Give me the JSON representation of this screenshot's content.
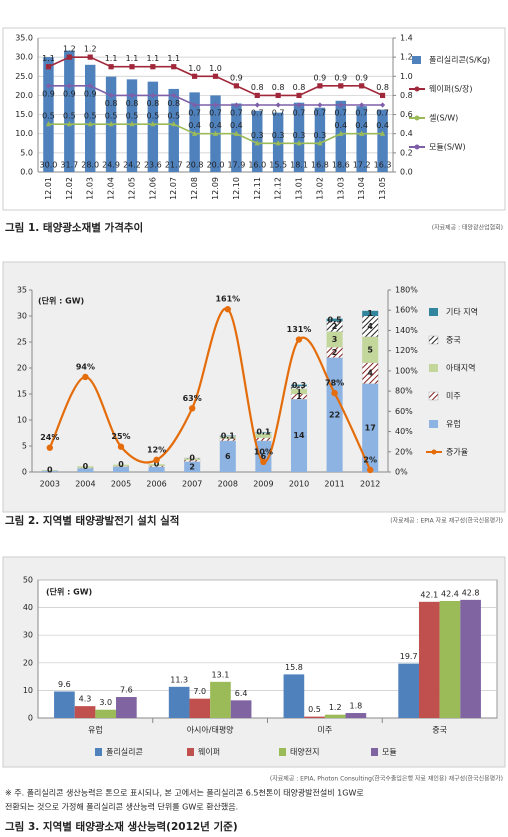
{
  "chart_data": [
    {
      "type": "combo",
      "caption": "그림 1. 태양광소재별 가격추이",
      "source": "(자료제공 : 태양광산업협회)",
      "categories": [
        "12.01",
        "12.02",
        "12.03",
        "12.04",
        "12.05",
        "12.06",
        "12.07",
        "12.08",
        "12.09",
        "12.10",
        "12.11",
        "12.12",
        "13.01",
        "13.02",
        "13.03",
        "13.04",
        "13.05"
      ],
      "series": [
        {
          "name": "폴리실리콘(S/Kg)",
          "type": "bar",
          "color": "#4f81bd",
          "values": [
            30.0,
            31.7,
            28.0,
            24.9,
            24.2,
            23.6,
            21.7,
            20.8,
            20.0,
            17.9,
            16.0,
            15.5,
            18.1,
            16.8,
            18.6,
            17.2,
            16.3
          ],
          "value_labels": [
            "30.0",
            "31.7",
            "28.0",
            "24.9",
            "24.2",
            "23.6",
            "21.7",
            "20.8",
            "20.0",
            "17.9",
            "16.0",
            "15.5",
            "18.1",
            "16.8",
            "18.6",
            "17.2",
            "16.3"
          ]
        },
        {
          "name": "웨이퍼(S/장)",
          "type": "line",
          "axis": "y2",
          "marker": "square",
          "color": "#a0283a",
          "values": [
            1.1,
            1.2,
            1.2,
            1.1,
            1.1,
            1.1,
            1.1,
            1.0,
            1.0,
            0.9,
            0.8,
            0.8,
            0.8,
            0.9,
            0.9,
            0.9,
            0.8
          ],
          "value_labels": [
            "1.1",
            "1.2",
            "1.2",
            "1.1",
            "1.1",
            "1.1",
            "1.1",
            "1.0",
            "1.0",
            "0.9",
            "0.8",
            "0.8",
            "0.8",
            "0.9",
            "0.9",
            "0.9",
            "0.8"
          ]
        },
        {
          "name": "셀(S/W)",
          "type": "line",
          "axis": "y2",
          "marker": "triangle",
          "color": "#9bbb59",
          "values": [
            0.5,
            0.5,
            0.5,
            0.5,
            0.5,
            0.5,
            0.5,
            0.4,
            0.4,
            0.4,
            0.3,
            0.3,
            0.3,
            0.3,
            0.4,
            0.4,
            0.4
          ]
        },
        {
          "name": "모듈(S/W)",
          "type": "line",
          "axis": "y2",
          "marker": "diamond",
          "color": "#7e5fa8",
          "values": [
            0.9,
            0.9,
            0.9,
            0.8,
            0.8,
            0.8,
            0.8,
            0.7,
            0.7,
            0.7,
            0.7,
            0.7,
            0.7,
            0.7,
            0.7,
            0.7,
            0.7
          ]
        }
      ],
      "ylim": [
        0,
        35
      ],
      "yticks": [
        {
          "value": 0,
          "label": "0.0"
        },
        {
          "value": 5,
          "label": "5.0"
        },
        {
          "value": 10,
          "label": "10.0"
        },
        {
          "value": 15,
          "label": "15.0"
        },
        {
          "value": 20,
          "label": "20.0"
        },
        {
          "value": 25,
          "label": "25.0"
        },
        {
          "value": 30,
          "label": "30.0"
        },
        {
          "value": 35,
          "label": "35.0"
        }
      ],
      "y2lim": [
        0,
        1.4
      ],
      "y2ticks": [
        {
          "value": 0,
          "label": "0.0"
        },
        0.2,
        0.4,
        0.6,
        0.8,
        {
          "value": 1,
          "label": "1.0"
        },
        1.2,
        1.4
      ],
      "grid": true
    },
    {
      "type": "stacked_bar",
      "caption": "그림 2. 지역별 태양광발전기 설치 실적",
      "source": "(자료제공 : EPIA 자료 재구성(한국신용평가)",
      "unit": "(단위 : GW)",
      "categories": [
        "2003",
        "2004",
        "2005",
        "2006",
        "2007",
        "2008",
        "2009",
        "2010",
        "2011",
        "2012"
      ],
      "series": [
        {
          "name": "유럽",
          "type": "bar",
          "color": "#8db3e2",
          "values": [
            0.2,
            0.7,
            1,
            1,
            2,
            6,
            6,
            14,
            22,
            17
          ],
          "value_labels": [
            null,
            null,
            null,
            null,
            "2",
            "6",
            "6",
            "14",
            "22",
            "17"
          ]
        },
        {
          "name": "미주",
          "type": "bar",
          "hatch": true,
          "color": "#7f1d1d",
          "values": [
            0.05,
            0.1,
            0.1,
            0.2,
            0.3,
            0.4,
            0.6,
            1,
            2,
            4
          ],
          "value_labels": [
            null,
            null,
            null,
            null,
            null,
            null,
            null,
            "1",
            "2",
            "4"
          ]
        },
        {
          "name": "아태지역",
          "type": "bar",
          "color": "#c3d69b",
          "values": [
            0.1,
            0.3,
            0.3,
            0.3,
            0.3,
            0.4,
            0.8,
            1,
            3,
            5
          ],
          "value_labels": [
            null,
            null,
            null,
            null,
            null,
            null,
            null,
            "1",
            "3",
            "5"
          ]
        },
        {
          "name": "중국",
          "type": "bar",
          "hatch": true,
          "color": "#222222",
          "values": [
            0,
            0,
            0,
            0,
            0.1,
            0.1,
            0.2,
            0.5,
            2,
            4
          ],
          "value_labels": [
            null,
            null,
            null,
            null,
            null,
            null,
            null,
            null,
            "2",
            "4"
          ]
        },
        {
          "name": "기타 지역",
          "type": "bar",
          "color": "#31859c",
          "values": [
            0,
            0,
            0,
            0,
            0,
            0.1,
            0.1,
            0.3,
            0.5,
            1
          ]
        },
        {
          "name": "증가율",
          "type": "line",
          "axis": "y2",
          "smooth": true,
          "marker": "circle",
          "color": "#e46c0a",
          "values": [
            24,
            94,
            25,
            12,
            63,
            161,
            10,
            131,
            78,
            2
          ],
          "value_labels": [
            "24%",
            "94%",
            "25%",
            "12%",
            "63%",
            "161%",
            "10%",
            "131%",
            "78%",
            "2%"
          ]
        }
      ],
      "ylim": [
        0,
        35
      ],
      "yticks": [
        0,
        5,
        10,
        15,
        20,
        25,
        30,
        35
      ],
      "y2lim": [
        0,
        180
      ],
      "y2ticks": [
        {
          "value": 0,
          "label": "0%"
        },
        {
          "value": 20,
          "label": "20%"
        },
        {
          "value": 40,
          "label": "40%"
        },
        {
          "value": 60,
          "label": "60%"
        },
        {
          "value": 80,
          "label": "80%"
        },
        {
          "value": 100,
          "label": "100%"
        },
        {
          "value": 120,
          "label": "120%"
        },
        {
          "value": 140,
          "label": "140%"
        },
        {
          "value": 160,
          "label": "160%"
        },
        {
          "value": 180,
          "label": "180%"
        }
      ],
      "grid": false
    },
    {
      "type": "grouped_bar",
      "caption": "그림 3. 지역별 태양광소재 생산능력(2012년 기준)",
      "source": "(자료제공 : EPIA, Photon Consulting(한국수출입은행 자료 재인용) 재구성(한국신용평가)",
      "unit": "(단위 : GW)",
      "note": [
        "※ 주. 폴리실리콘 생산능력은 톤으로 표시되나, 본 고에서는 폴리실리콘 6.5천톤이 태양광발전설비 1GW로",
        "전환되는 것으로 가정해 폴리실리콘 생산능력 단위를 GW로 환산했음."
      ],
      "categories": [
        "유럽",
        "아시아/태평양",
        "미주",
        "중국"
      ],
      "series": [
        {
          "name": "폴리실리콘",
          "color": "#4f81bd",
          "values": [
            9.6,
            11.3,
            15.8,
            19.7
          ]
        },
        {
          "name": "웨이퍼",
          "color": "#c0504d",
          "values": [
            4.3,
            7.0,
            0.5,
            42.1
          ],
          "value_labels": [
            "4.3",
            "7.0",
            "0.5",
            "42.1"
          ]
        },
        {
          "name": "태양전지",
          "color": "#9bbb59",
          "values": [
            3.0,
            13.1,
            1.2,
            42.4
          ],
          "value_labels": [
            "3.0",
            "13.1",
            "1.2",
            "42.4"
          ]
        },
        {
          "name": "모듈",
          "color": "#8064a2",
          "values": [
            7.6,
            6.4,
            1.8,
            42.8
          ]
        }
      ],
      "ylim": [
        0,
        50
      ],
      "yticks": [
        0,
        10,
        20,
        30,
        40,
        50
      ],
      "grid": true
    }
  ]
}
